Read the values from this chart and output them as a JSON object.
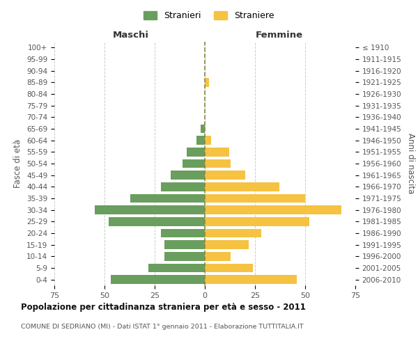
{
  "age_groups": [
    "0-4",
    "5-9",
    "10-14",
    "15-19",
    "20-24",
    "25-29",
    "30-34",
    "35-39",
    "40-44",
    "45-49",
    "50-54",
    "55-59",
    "60-64",
    "65-69",
    "70-74",
    "75-79",
    "80-84",
    "85-89",
    "90-94",
    "95-99",
    "100+"
  ],
  "birth_years": [
    "2006-2010",
    "2001-2005",
    "1996-2000",
    "1991-1995",
    "1986-1990",
    "1981-1985",
    "1976-1980",
    "1971-1975",
    "1966-1970",
    "1961-1965",
    "1956-1960",
    "1951-1955",
    "1946-1950",
    "1941-1945",
    "1936-1940",
    "1931-1935",
    "1926-1930",
    "1921-1925",
    "1916-1920",
    "1911-1915",
    "≤ 1910"
  ],
  "maschi": [
    47,
    28,
    20,
    20,
    22,
    48,
    55,
    37,
    22,
    17,
    11,
    9,
    4,
    2,
    0,
    0,
    0,
    0,
    0,
    0,
    0
  ],
  "femmine": [
    46,
    24,
    13,
    22,
    28,
    52,
    68,
    50,
    37,
    20,
    13,
    12,
    3,
    0,
    0,
    0,
    0,
    2,
    0,
    0,
    0
  ],
  "maschi_color": "#6a9e5e",
  "femmine_color": "#f5c242",
  "background_color": "#ffffff",
  "grid_color": "#cccccc",
  "title": "Popolazione per cittadinanza straniera per età e sesso - 2011",
  "subtitle": "COMUNE DI SEDRIANO (MI) - Dati ISTAT 1° gennaio 2011 - Elaborazione TUTTITALIA.IT",
  "xlabel_left": "Maschi",
  "xlabel_right": "Femmine",
  "ylabel_left": "Fasce di età",
  "ylabel_right": "Anni di nascita",
  "legend_maschi": "Stranieri",
  "legend_femmine": "Straniere",
  "xlim": 75
}
